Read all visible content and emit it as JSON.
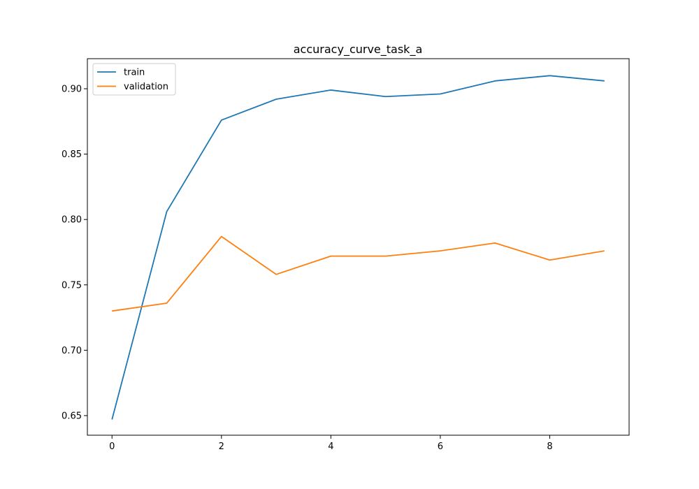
{
  "chart_data": {
    "type": "line",
    "title": "accuracy_curve_task_a",
    "xlabel": "",
    "ylabel": "",
    "xlim": [
      -0.45,
      9.45
    ],
    "ylim": [
      0.635,
      0.923
    ],
    "x_ticks": [
      0,
      2,
      4,
      6,
      8
    ],
    "x_tick_labels": [
      "0",
      "2",
      "4",
      "6",
      "8"
    ],
    "y_ticks": [
      0.65,
      0.7,
      0.75,
      0.8,
      0.85,
      0.9
    ],
    "y_tick_labels": [
      "0.65",
      "0.70",
      "0.75",
      "0.80",
      "0.85",
      "0.90"
    ],
    "grid": false,
    "legend_position": "top-left",
    "x": [
      0,
      1,
      2,
      3,
      4,
      5,
      6,
      7,
      8,
      9
    ],
    "series": [
      {
        "name": "train",
        "color": "#1f77b4",
        "values": [
          0.647,
          0.806,
          0.876,
          0.892,
          0.899,
          0.894,
          0.896,
          0.906,
          0.91,
          0.906
        ]
      },
      {
        "name": "validation",
        "color": "#ff7f0e",
        "values": [
          0.73,
          0.736,
          0.787,
          0.758,
          0.772,
          0.772,
          0.776,
          0.782,
          0.769,
          0.776
        ]
      }
    ]
  }
}
